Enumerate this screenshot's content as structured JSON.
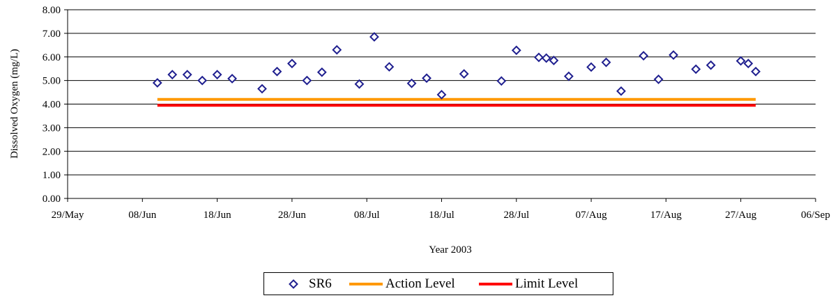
{
  "chart_data": {
    "type": "scatter",
    "title": "",
    "xlabel": "Year 2003",
    "ylabel": "Dissolved Oxygen (mg/L)",
    "xlim": [
      "2003-05-29",
      "2003-09-06"
    ],
    "ylim": [
      0,
      8
    ],
    "x_ticks": [
      "29/May",
      "08/Jun",
      "18/Jun",
      "28/Jun",
      "08/Jul",
      "18/Jul",
      "28/Jul",
      "07/Aug",
      "17/Aug",
      "27/Aug",
      "06/Sep"
    ],
    "y_ticks": [
      "0.00",
      "1.00",
      "2.00",
      "3.00",
      "4.00",
      "5.00",
      "6.00",
      "7.00",
      "8.00"
    ],
    "grid": "horizontal",
    "legend_position": "bottom-center",
    "series": [
      {
        "name": "SR6",
        "type": "scatter",
        "color": "#1f1f8f",
        "marker": "diamond-open",
        "x": [
          "2003-06-10",
          "2003-06-12",
          "2003-06-14",
          "2003-06-16",
          "2003-06-18",
          "2003-06-20",
          "2003-06-24",
          "2003-06-26",
          "2003-06-28",
          "2003-06-30",
          "2003-07-02",
          "2003-07-04",
          "2003-07-07",
          "2003-07-09",
          "2003-07-11",
          "2003-07-14",
          "2003-07-16",
          "2003-07-18",
          "2003-07-21",
          "2003-07-26",
          "2003-07-28",
          "2003-07-31",
          "2003-08-01",
          "2003-08-02",
          "2003-08-04",
          "2003-08-07",
          "2003-08-09",
          "2003-08-11",
          "2003-08-14",
          "2003-08-16",
          "2003-08-18",
          "2003-08-21",
          "2003-08-23",
          "2003-08-27",
          "2003-08-28",
          "2003-08-29"
        ],
        "y": [
          4.9,
          5.25,
          5.25,
          5.0,
          5.25,
          5.08,
          4.65,
          5.38,
          5.72,
          5.0,
          5.35,
          6.3,
          4.85,
          6.85,
          5.58,
          4.88,
          5.1,
          4.4,
          5.28,
          4.98,
          6.28,
          5.98,
          5.95,
          5.85,
          5.18,
          5.57,
          5.77,
          4.55,
          6.05,
          5.05,
          6.08,
          5.48,
          5.65,
          5.83,
          5.72,
          5.38
        ]
      },
      {
        "name": "Action Level",
        "type": "line",
        "color": "#ff9900",
        "x": [
          "2003-06-10",
          "2003-08-29"
        ],
        "y": [
          4.2,
          4.2
        ]
      },
      {
        "name": "Limit Level",
        "type": "line",
        "color": "#ff0000",
        "x": [
          "2003-06-10",
          "2003-08-29"
        ],
        "y": [
          3.95,
          3.95
        ]
      }
    ]
  }
}
